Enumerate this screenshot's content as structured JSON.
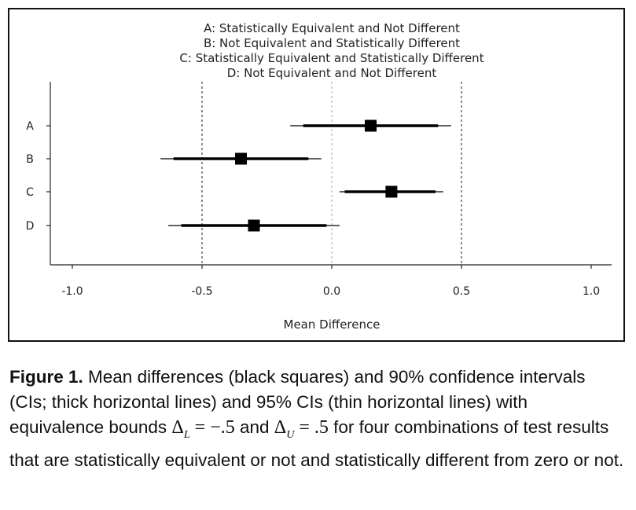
{
  "chart_data": {
    "type": "forest",
    "legend": [
      "A: Statistically Equivalent and Not Different",
      "B: Not Equivalent and Statistically Different",
      "C: Statistically Equivalent and Statistically Different",
      "D: Not Equivalent and Not Different"
    ],
    "xlabel": "Mean Difference",
    "xlim": [
      -1.0,
      1.0
    ],
    "xticks": [
      "-1.0",
      "-0.5",
      "0.0",
      "0.5",
      "1.0"
    ],
    "xtick_values": [
      -1.0,
      -0.5,
      0.0,
      0.5,
      1.0
    ],
    "reference_lines": [
      -0.5,
      0.0,
      0.5
    ],
    "categories": [
      "A",
      "B",
      "C",
      "D"
    ],
    "series": [
      {
        "category": "A",
        "mean": 0.15,
        "ci90": [
          -0.11,
          0.41
        ],
        "ci95": [
          -0.16,
          0.46
        ]
      },
      {
        "category": "B",
        "mean": -0.35,
        "ci90": [
          -0.61,
          -0.09
        ],
        "ci95": [
          -0.66,
          -0.04
        ]
      },
      {
        "category": "C",
        "mean": 0.23,
        "ci90": [
          0.05,
          0.4
        ],
        "ci95": [
          0.03,
          0.43
        ]
      },
      {
        "category": "D",
        "mean": -0.3,
        "ci90": [
          -0.58,
          -0.02
        ],
        "ci95": [
          -0.63,
          0.03
        ]
      }
    ],
    "colors": {
      "marker": "#000000",
      "reference": "#444444",
      "zero": "#aaaaaa"
    }
  },
  "caption": {
    "label": "Figure 1.",
    "text_before_math": " Mean differences (black squares) and 90% confidence intervals (CIs; thick horizontal lines) and 95% CIs (thin horizontal lines) with equivalence bounds ",
    "math_lower": "Δ",
    "math_lower_sub": "L",
    "math_lower_eq": " = −.5",
    "text_and": " and ",
    "math_upper": "Δ",
    "math_upper_sub": "U",
    "math_upper_eq": " = .5",
    "text_after_math": " for four combinations of test results that are statistically equivalent or not and statistically different from zero or not."
  }
}
